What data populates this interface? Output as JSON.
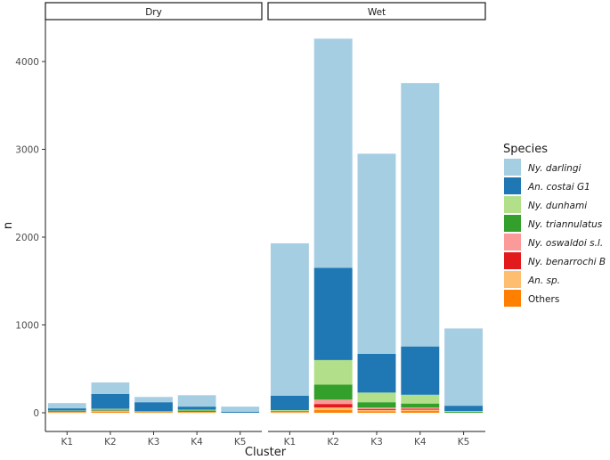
{
  "chart_data": {
    "type": "bar",
    "stacked": true,
    "facet_by": "season",
    "panels": [
      "Dry",
      "Wet"
    ],
    "categories": [
      "K1",
      "K2",
      "K3",
      "K4",
      "K5"
    ],
    "xlabel": "Cluster",
    "ylabel": "n",
    "ylim": [
      0,
      4300
    ],
    "yticks": [
      0,
      1000,
      2000,
      3000,
      4000
    ],
    "grid": false,
    "legend": {
      "title": "Species",
      "position": "right"
    },
    "series": [
      {
        "name": "Others",
        "color": "#ff7f00",
        "italic": false,
        "values": {
          "Dry": [
            5,
            10,
            5,
            5,
            0
          ],
          "Wet": [
            5,
            30,
            15,
            20,
            0
          ]
        }
      },
      {
        "name": "An. sp.",
        "color": "#fdbf6f",
        "italic": true,
        "values": {
          "Dry": [
            5,
            10,
            5,
            5,
            0
          ],
          "Wet": [
            5,
            30,
            15,
            15,
            0
          ]
        }
      },
      {
        "name": "Ny. benarrochi B",
        "color": "#e31a1c",
        "italic": true,
        "values": {
          "Dry": [
            0,
            0,
            0,
            0,
            0
          ],
          "Wet": [
            0,
            40,
            10,
            10,
            0
          ]
        }
      },
      {
        "name": "Ny. oswaldoi s.l.",
        "color": "#fb9a99",
        "italic": true,
        "values": {
          "Dry": [
            0,
            5,
            0,
            0,
            0
          ],
          "Wet": [
            5,
            50,
            20,
            15,
            0
          ]
        }
      },
      {
        "name": "Ny. triannulatus",
        "color": "#33a02c",
        "italic": true,
        "values": {
          "Dry": [
            10,
            10,
            5,
            15,
            0
          ],
          "Wet": [
            5,
            170,
            60,
            45,
            10
          ]
        }
      },
      {
        "name": "Ny. dunhami",
        "color": "#b2df8a",
        "italic": true,
        "values": {
          "Dry": [
            5,
            10,
            5,
            10,
            0
          ],
          "Wet": [
            10,
            280,
            110,
            100,
            10
          ]
        }
      },
      {
        "name": "An. costai G1",
        "color": "#1f78b4",
        "italic": true,
        "values": {
          "Dry": [
            25,
            170,
            100,
            35,
            10
          ],
          "Wet": [
            165,
            1050,
            440,
            550,
            60
          ]
        }
      },
      {
        "name": "Ny. darlingi",
        "color": "#a6cee3",
        "italic": true,
        "values": {
          "Dry": [
            60,
            130,
            60,
            130,
            60
          ],
          "Wet": [
            1735,
            2610,
            2280,
            3000,
            880
          ]
        }
      }
    ],
    "legend_order": [
      "Ny. darlingi",
      "An. costai G1",
      "Ny. dunhami",
      "Ny. triannulatus",
      "Ny. oswaldoi s.l.",
      "Ny. benarrochi B",
      "An. sp.",
      "Others"
    ]
  }
}
